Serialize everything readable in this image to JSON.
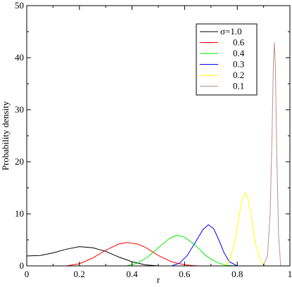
{
  "chart_data": {
    "type": "line",
    "title": "",
    "xlabel": "r",
    "ylabel": "Probability density",
    "xlim": [
      0,
      1
    ],
    "ylim": [
      0,
      50
    ],
    "x_ticks": [
      "0",
      "0.2",
      "0.4",
      "0.6",
      "0.8",
      "1"
    ],
    "y_ticks": [
      "0",
      "10",
      "20",
      "30",
      "40",
      "50"
    ],
    "grid": false,
    "legend_placement": "top-right",
    "series": [
      {
        "name": "σ=1.0",
        "color": "#000000",
        "x": [
          0.0,
          0.05,
          0.1,
          0.15,
          0.2,
          0.25,
          0.3,
          0.35,
          0.4,
          0.45,
          0.5
        ],
        "y": [
          1.9,
          2.0,
          2.5,
          3.2,
          3.7,
          3.5,
          2.8,
          1.7,
          0.8,
          0.2,
          0.0
        ]
      },
      {
        "name": "0.6",
        "color": "#ff0000",
        "x": [
          0.15,
          0.2,
          0.25,
          0.3,
          0.35,
          0.38,
          0.42,
          0.45,
          0.5,
          0.55,
          0.6,
          0.65
        ],
        "y": [
          0.0,
          0.4,
          1.5,
          3.0,
          4.2,
          4.5,
          4.2,
          3.6,
          2.0,
          0.8,
          0.2,
          0.0
        ]
      },
      {
        "name": "0.4",
        "color": "#00ee00",
        "x": [
          0.38,
          0.42,
          0.46,
          0.5,
          0.54,
          0.57,
          0.6,
          0.64,
          0.68,
          0.72,
          0.76,
          0.8
        ],
        "y": [
          0.0,
          0.5,
          1.7,
          3.5,
          5.2,
          5.9,
          5.5,
          4.0,
          2.0,
          0.7,
          0.1,
          0.0
        ]
      },
      {
        "name": "0.3",
        "color": "#0000ff",
        "x": [
          0.55,
          0.58,
          0.61,
          0.64,
          0.67,
          0.69,
          0.71,
          0.73,
          0.75,
          0.77,
          0.8
        ],
        "y": [
          0.0,
          0.5,
          2.0,
          4.5,
          7.0,
          7.9,
          7.2,
          5.0,
          2.5,
          0.8,
          0.0
        ]
      },
      {
        "name": "0.2",
        "color": "#ffff00",
        "x": [
          0.75,
          0.77,
          0.79,
          0.81,
          0.82,
          0.83,
          0.84,
          0.85,
          0.87,
          0.89,
          0.91
        ],
        "y": [
          0.0,
          1.0,
          4.5,
          10.5,
          13.0,
          14.0,
          13.2,
          10.5,
          4.0,
          0.8,
          0.0
        ]
      },
      {
        "name": "0.1",
        "color": "#bc8f8f",
        "x": [
          0.9,
          0.915,
          0.925,
          0.932,
          0.937,
          0.941,
          0.945,
          0.95,
          0.957,
          0.965
        ],
        "y": [
          0.0,
          2.0,
          10.0,
          25.0,
          38.0,
          43.0,
          38.0,
          22.0,
          6.0,
          0.0
        ]
      }
    ]
  }
}
